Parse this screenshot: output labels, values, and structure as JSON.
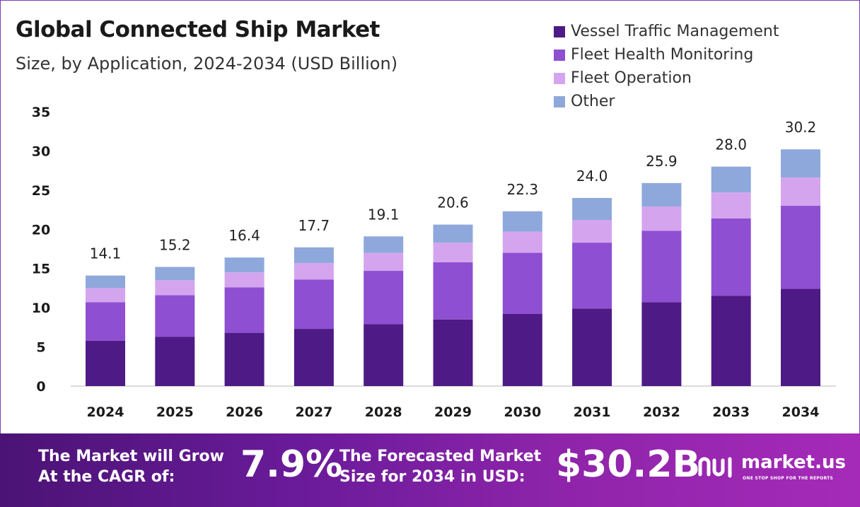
{
  "header": {
    "title": "Global Connected Ship Market",
    "subtitle": "Size, by Application, 2024-2034 (USD Billion)"
  },
  "chart_data": {
    "type": "bar",
    "stacked": true,
    "categories": [
      "2024",
      "2025",
      "2026",
      "2027",
      "2028",
      "2029",
      "2030",
      "2031",
      "2032",
      "2033",
      "2034"
    ],
    "series": [
      {
        "name": "Vessel Traffic Management",
        "color": "#4e1a85",
        "values": [
          5.8,
          6.3,
          6.8,
          7.3,
          7.9,
          8.5,
          9.2,
          9.9,
          10.7,
          11.5,
          12.4
        ]
      },
      {
        "name": "Fleet Health Monitoring",
        "color": "#8e4fd2",
        "values": [
          4.9,
          5.3,
          5.8,
          6.3,
          6.8,
          7.3,
          7.8,
          8.4,
          9.1,
          9.9,
          10.6
        ]
      },
      {
        "name": "Fleet Operation",
        "color": "#d4a5ee",
        "values": [
          1.8,
          1.9,
          1.9,
          2.1,
          2.3,
          2.5,
          2.7,
          2.9,
          3.1,
          3.3,
          3.6
        ]
      },
      {
        "name": "Other",
        "color": "#8fa8dc",
        "values": [
          1.6,
          1.7,
          1.9,
          2.0,
          2.1,
          2.3,
          2.6,
          2.8,
          3.0,
          3.3,
          3.6
        ]
      }
    ],
    "totals": [
      "14.1",
      "15.2",
      "16.4",
      "17.7",
      "19.1",
      "20.6",
      "22.3",
      "24.0",
      "25.9",
      "28.0",
      "30.2"
    ],
    "ylim": [
      0,
      35
    ],
    "yticks": [
      "0",
      "5",
      "10",
      "15",
      "20",
      "25",
      "30",
      "35"
    ],
    "grid": false,
    "legend_position": "top-right"
  },
  "footer": {
    "cagr_label": "The Market will Grow At the CAGR of:",
    "cagr_value": "7.9%",
    "size_label": "The Forecasted Market Size for 2034 in USD:",
    "size_value": "$30.2B",
    "brand_name": "market.us",
    "brand_tagline": "ONE STOP SHOP FOR THE REPORTS",
    "brand_icon": "market-us-logo-icon"
  }
}
